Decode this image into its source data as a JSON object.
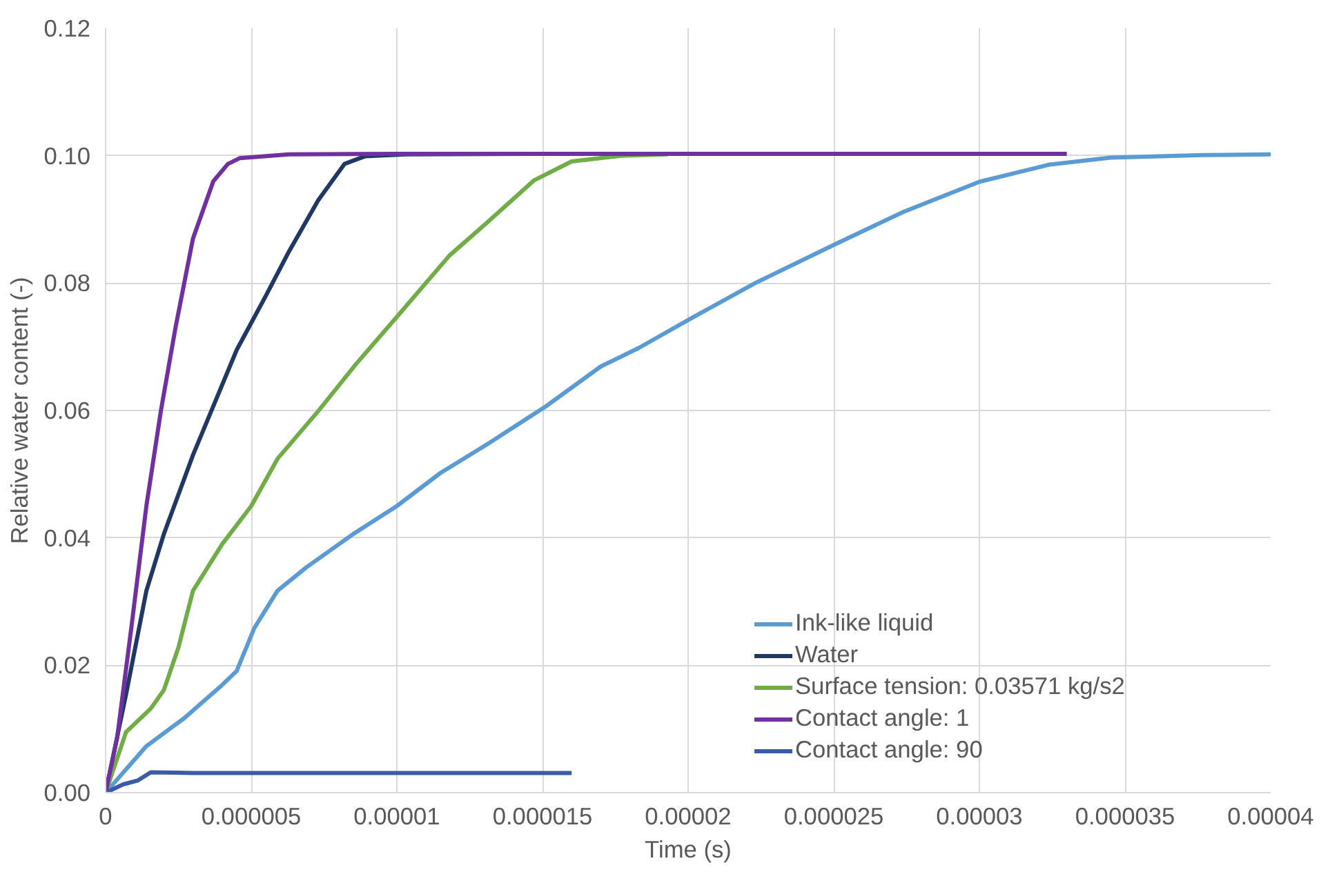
{
  "chart_data": {
    "type": "line",
    "xlabel": "Time (s)",
    "ylabel": "Relative water content (-)",
    "xlim": [
      0,
      4e-05
    ],
    "ylim": [
      0,
      0.12
    ],
    "xticks": [
      {
        "value": 0,
        "label": "0"
      },
      {
        "value": 5e-06,
        "label": "0.000005"
      },
      {
        "value": 1e-05,
        "label": "0.00001"
      },
      {
        "value": 1.5e-05,
        "label": "0.000015"
      },
      {
        "value": 2e-05,
        "label": "0.00002"
      },
      {
        "value": 2.5e-05,
        "label": "0.000025"
      },
      {
        "value": 3e-05,
        "label": "0.00003"
      },
      {
        "value": 3.5e-05,
        "label": "0.000035"
      },
      {
        "value": 4e-05,
        "label": "0.00004"
      }
    ],
    "yticks": [
      {
        "value": 0,
        "label": "0.00"
      },
      {
        "value": 0.02,
        "label": "0.02"
      },
      {
        "value": 0.04,
        "label": "0.04"
      },
      {
        "value": 0.06,
        "label": "0.06"
      },
      {
        "value": 0.08,
        "label": "0.08"
      },
      {
        "value": 0.1,
        "label": "0.10"
      },
      {
        "value": 0.12,
        "label": "0.12"
      }
    ],
    "grid": true,
    "legend": "bottom right",
    "line_style": "solid",
    "series": [
      {
        "name": "Ink-like liquid",
        "color": "#5b9bd5",
        "x": [
          0,
          1.4e-06,
          2.7e-06,
          4e-06,
          4.5e-06,
          5.1e-06,
          5.9e-06,
          6.9e-06,
          8.5e-06,
          1e-05,
          1.15e-05,
          1.31e-05,
          1.51e-05,
          1.7e-05,
          1.83e-05,
          2e-05,
          2.23e-05,
          2.5e-05,
          2.74e-05,
          3e-05,
          3.24e-05,
          3.45e-05,
          3.77e-05,
          4e-05
        ],
        "values": [
          0,
          0.0073,
          0.0117,
          0.0169,
          0.0191,
          0.0258,
          0.0317,
          0.0354,
          0.0406,
          0.045,
          0.0502,
          0.0547,
          0.0606,
          0.0669,
          0.0698,
          0.0742,
          0.08,
          0.086,
          0.0912,
          0.0959,
          0.0986,
          0.0997,
          0.1001,
          0.1002
        ]
      },
      {
        "name": "Water",
        "color": "#203864",
        "x": [
          0,
          7e-07,
          1.4e-06,
          2e-06,
          3e-06,
          4.5e-06,
          5.5e-06,
          6.3e-06,
          7.3e-06,
          8.2e-06,
          8.9e-06,
          1.03e-05,
          1.5e-05
        ],
        "values": [
          0,
          0.0154,
          0.0317,
          0.0406,
          0.053,
          0.0695,
          0.078,
          0.085,
          0.093,
          0.0987,
          0.0999,
          0.1002,
          0.1003
        ]
      },
      {
        "name": "Surface tension: 0.03571 kg/s2",
        "color": "#70ad47",
        "x": [
          0,
          7e-07,
          1.55e-06,
          2e-06,
          2.5e-06,
          3e-06,
          4e-06,
          5e-06,
          5.9e-06,
          7.3e-06,
          8.6e-06,
          1e-05,
          1.18e-05,
          1.31e-05,
          1.47e-05,
          1.6e-05,
          1.77e-05,
          1.93e-05
        ],
        "values": [
          0,
          0.0095,
          0.0132,
          0.0161,
          0.0228,
          0.0317,
          0.039,
          0.045,
          0.0524,
          0.0599,
          0.0673,
          0.0747,
          0.0843,
          0.0895,
          0.0961,
          0.0991,
          0.1,
          0.1002
        ]
      },
      {
        "name": "Contact angle: 1",
        "color": "#7030a0",
        "x": [
          0,
          4e-07,
          9e-07,
          1.4e-06,
          1.9e-06,
          2.4e-06,
          3e-06,
          3.7e-06,
          4.2e-06,
          4.6e-06,
          6.3e-06,
          1e-05,
          3.3e-05
        ],
        "values": [
          0,
          0.0087,
          0.0265,
          0.045,
          0.06,
          0.073,
          0.087,
          0.096,
          0.0987,
          0.0996,
          0.1002,
          0.1003,
          0.1003
        ]
      },
      {
        "name": "Contact angle: 90",
        "color": "#3a5ba8",
        "x": [
          0,
          6e-07,
          1.1e-06,
          1.55e-06,
          3e-06,
          1.6e-05
        ],
        "values": [
          0,
          0.0013,
          0.0019,
          0.0032,
          0.0031,
          0.0031
        ]
      }
    ]
  }
}
